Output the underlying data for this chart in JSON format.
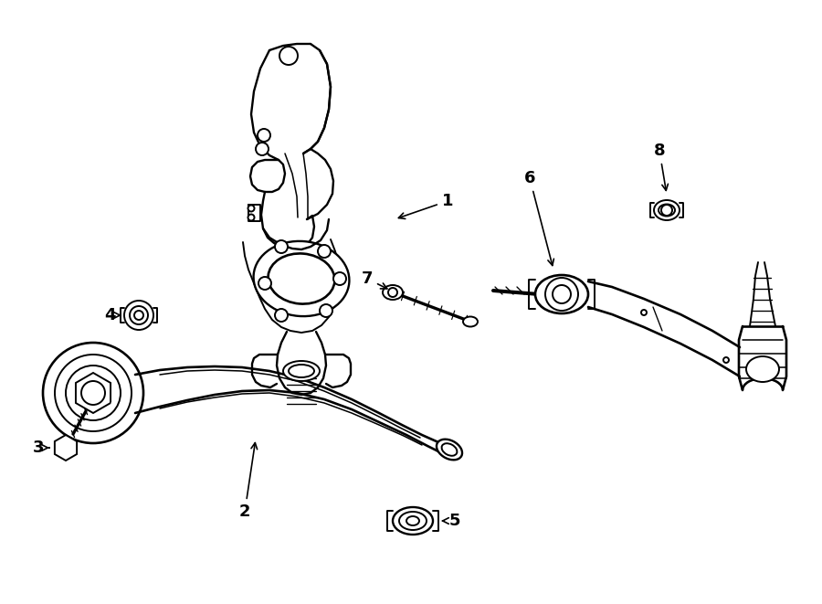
{
  "bg_color": "#ffffff",
  "line_color": "#000000",
  "line_width": 1.4,
  "label_fontsize": 13,
  "figsize": [
    9.0,
    6.61
  ],
  "dpi": 100
}
